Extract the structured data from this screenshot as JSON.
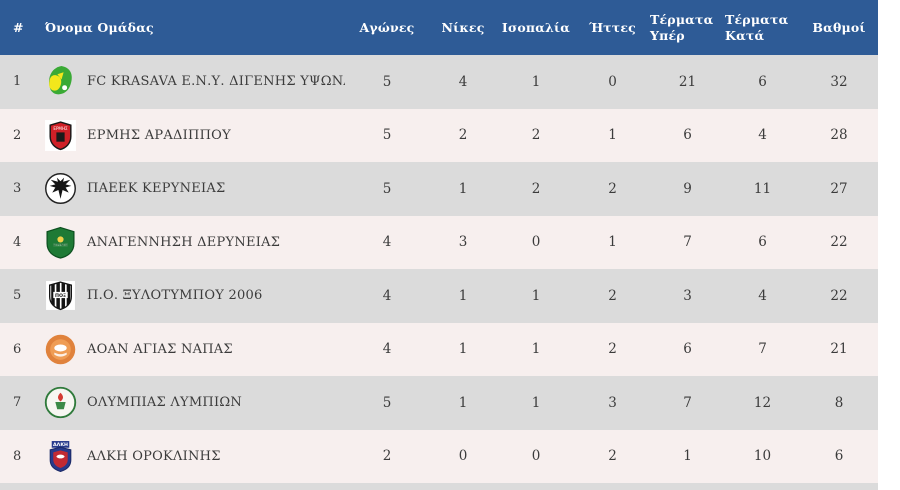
{
  "table": {
    "columns": [
      {
        "key": "rank",
        "label": "#"
      },
      {
        "key": "name",
        "label": "Όνομα Ομάδας"
      },
      {
        "key": "games",
        "label": "Αγώνες"
      },
      {
        "key": "wins",
        "label": "Νίκες"
      },
      {
        "key": "draws",
        "label": "Ισοπαλία"
      },
      {
        "key": "losses",
        "label": "Ήττες"
      },
      {
        "key": "gf",
        "label": "Τέρματα Υπέρ"
      },
      {
        "key": "ga",
        "label": "Τέρματα Κατά"
      },
      {
        "key": "points",
        "label": "Βαθμοί"
      }
    ],
    "rows": [
      {
        "rank": 1,
        "name": "FC KRASAVA Ε.Ν.Υ. ΔΙΓΕΝΗΣ ΥΨΩΝΑ",
        "logo": "krasava-club-logo",
        "games": 5,
        "wins": 4,
        "draws": 1,
        "losses": 0,
        "gf": 21,
        "ga": 6,
        "points": 32
      },
      {
        "rank": 2,
        "name": "ΕΡΜΗΣ ΑΡΑΔΙΠΠΟΥ",
        "logo": "ermis-club-logo",
        "games": 5,
        "wins": 2,
        "draws": 2,
        "losses": 1,
        "gf": 6,
        "ga": 4,
        "points": 28
      },
      {
        "rank": 3,
        "name": "ΠΑΕΕΚ ΚΕΡΥΝΕΙΑΣ",
        "logo": "paeek-club-logo",
        "games": 5,
        "wins": 1,
        "draws": 2,
        "losses": 2,
        "gf": 9,
        "ga": 11,
        "points": 27
      },
      {
        "rank": 4,
        "name": "ΑΝΑΓΕΝΝΗΣΗ ΔΕΡΥΝΕΙΑΣ",
        "logo": "anagennisi-club-logo",
        "games": 4,
        "wins": 3,
        "draws": 0,
        "losses": 1,
        "gf": 7,
        "ga": 6,
        "points": 22
      },
      {
        "rank": 5,
        "name": "Π.Ο. ΞΥΛΟΤΥΜΠΟΥ 2006",
        "logo": "xylotympou-club-logo",
        "games": 4,
        "wins": 1,
        "draws": 1,
        "losses": 2,
        "gf": 3,
        "ga": 4,
        "points": 22
      },
      {
        "rank": 6,
        "name": "ΑΟΑΝ ΑΓΙΑΣ ΝΑΠΑΣ",
        "logo": "aoan-club-logo",
        "games": 4,
        "wins": 1,
        "draws": 1,
        "losses": 2,
        "gf": 6,
        "ga": 7,
        "points": 21
      },
      {
        "rank": 7,
        "name": "ΟΛΥΜΠΙΑΣ ΛΥΜΠΙΩΝ",
        "logo": "olympias-club-logo",
        "games": 5,
        "wins": 1,
        "draws": 1,
        "losses": 3,
        "gf": 7,
        "ga": 12,
        "points": 8
      },
      {
        "rank": 8,
        "name": "ΑΛΚΗ ΟΡΟΚΛΙΝΗΣ",
        "logo": "alki-club-logo",
        "games": 2,
        "wins": 0,
        "draws": 0,
        "losses": 2,
        "gf": 1,
        "ga": 10,
        "points": 6
      }
    ]
  },
  "colors": {
    "header_bg": "#2e5b96",
    "header_text": "#ffffff",
    "row_gray": "#dbdbdb",
    "row_pink": "#f7efee",
    "row_text": "#3b3b3b"
  }
}
